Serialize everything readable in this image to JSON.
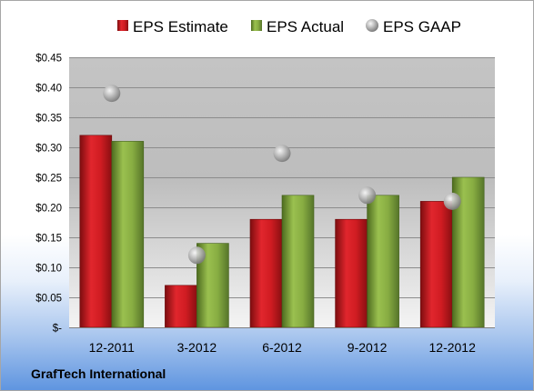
{
  "chart_data": {
    "type": "bar",
    "categories": [
      "12-2011",
      "3-2012",
      "6-2012",
      "9-2012",
      "12-2012"
    ],
    "series": [
      {
        "name": "EPS Estimate",
        "kind": "bar",
        "color": "#c0141b",
        "values": [
          0.32,
          0.07,
          0.18,
          0.18,
          0.21
        ]
      },
      {
        "name": "EPS Actual",
        "kind": "bar",
        "color": "#7fa33a",
        "values": [
          0.31,
          0.14,
          0.22,
          0.22,
          0.25
        ]
      },
      {
        "name": "EPS GAAP",
        "kind": "marker",
        "color": "#b4b4b4",
        "values": [
          0.39,
          0.12,
          0.29,
          0.22,
          0.21
        ]
      }
    ],
    "y_ticks": [
      {
        "value": 0,
        "label": "$-"
      },
      {
        "value": 0.05,
        "label": "$0.05"
      },
      {
        "value": 0.1,
        "label": "$0.10"
      },
      {
        "value": 0.15,
        "label": "$0.15"
      },
      {
        "value": 0.2,
        "label": "$0.20"
      },
      {
        "value": 0.25,
        "label": "$0.25"
      },
      {
        "value": 0.3,
        "label": "$0.30"
      },
      {
        "value": 0.35,
        "label": "$0.35"
      },
      {
        "value": 0.4,
        "label": "$0.40"
      },
      {
        "value": 0.45,
        "label": "$0.45"
      }
    ],
    "ylim": [
      0,
      0.45
    ],
    "grid": true,
    "legend_position": "top"
  },
  "footer": {
    "company": "GrafTech International"
  }
}
